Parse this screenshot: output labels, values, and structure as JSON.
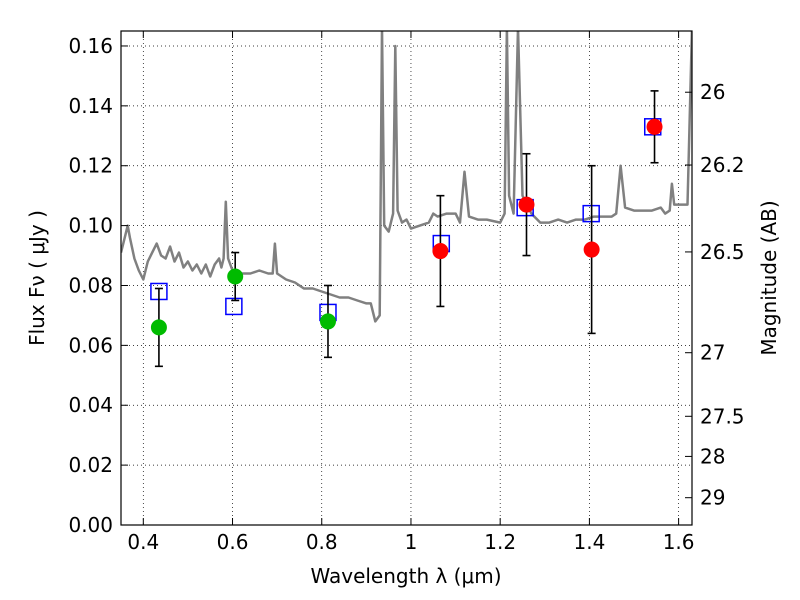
{
  "chart_data": {
    "type": "scatter",
    "xlabel": "Wavelength  λ (μm)",
    "ylabel": "Flux  Fν  ( μJy )",
    "ylabel_right": "Magnitude (AB)",
    "xlim": [
      0.35,
      1.63
    ],
    "ylim": [
      0.0,
      0.165
    ],
    "grid": true,
    "x_ticks": [
      {
        "value": 0.4,
        "label": "0.4"
      },
      {
        "value": 0.6,
        "label": "0.6"
      },
      {
        "value": 0.8,
        "label": "0.8"
      },
      {
        "value": 1.0,
        "label": "1"
      },
      {
        "value": 1.2,
        "label": "1.2"
      },
      {
        "value": 1.4,
        "label": "1.4"
      },
      {
        "value": 1.6,
        "label": "1.6"
      }
    ],
    "y_ticks": [
      {
        "value": 0.0,
        "label": "0.00"
      },
      {
        "value": 0.02,
        "label": "0.02"
      },
      {
        "value": 0.04,
        "label": "0.04"
      },
      {
        "value": 0.06,
        "label": "0.06"
      },
      {
        "value": 0.08,
        "label": "0.08"
      },
      {
        "value": 0.1,
        "label": "0.10"
      },
      {
        "value": 0.12,
        "label": "0.12"
      },
      {
        "value": 0.14,
        "label": "0.14"
      },
      {
        "value": 0.16,
        "label": "0.16"
      }
    ],
    "right_ticks": [
      {
        "value": 26.0,
        "label": "26"
      },
      {
        "value": 26.2,
        "label": "26.2"
      },
      {
        "value": 26.5,
        "label": "26.5"
      },
      {
        "value": 27.0,
        "label": "27"
      },
      {
        "value": 27.5,
        "label": "27.5"
      },
      {
        "value": 28.0,
        "label": "28"
      },
      {
        "value": 29.0,
        "label": "29"
      }
    ],
    "series": [
      {
        "style": "line",
        "color": "#808080",
        "points": [
          [
            0.35,
            0.091
          ],
          [
            0.36,
            0.097
          ],
          [
            0.365,
            0.1
          ],
          [
            0.37,
            0.096
          ],
          [
            0.38,
            0.089
          ],
          [
            0.39,
            0.085
          ],
          [
            0.4,
            0.082
          ],
          [
            0.41,
            0.088
          ],
          [
            0.42,
            0.091
          ],
          [
            0.43,
            0.094
          ],
          [
            0.44,
            0.09
          ],
          [
            0.45,
            0.089
          ],
          [
            0.46,
            0.093
          ],
          [
            0.47,
            0.088
          ],
          [
            0.48,
            0.091
          ],
          [
            0.49,
            0.086
          ],
          [
            0.5,
            0.088
          ],
          [
            0.51,
            0.085
          ],
          [
            0.52,
            0.087
          ],
          [
            0.53,
            0.084
          ],
          [
            0.54,
            0.087
          ],
          [
            0.55,
            0.083
          ],
          [
            0.56,
            0.087
          ],
          [
            0.57,
            0.089
          ],
          [
            0.575,
            0.086
          ],
          [
            0.58,
            0.089
          ],
          [
            0.585,
            0.108
          ],
          [
            0.59,
            0.089
          ],
          [
            0.6,
            0.085
          ],
          [
            0.62,
            0.084
          ],
          [
            0.64,
            0.084
          ],
          [
            0.66,
            0.085
          ],
          [
            0.68,
            0.084
          ],
          [
            0.69,
            0.084
          ],
          [
            0.695,
            0.094
          ],
          [
            0.7,
            0.084
          ],
          [
            0.72,
            0.082
          ],
          [
            0.74,
            0.081
          ],
          [
            0.76,
            0.079
          ],
          [
            0.78,
            0.079
          ],
          [
            0.8,
            0.078
          ],
          [
            0.82,
            0.077
          ],
          [
            0.84,
            0.076
          ],
          [
            0.86,
            0.076
          ],
          [
            0.88,
            0.075
          ],
          [
            0.9,
            0.074
          ],
          [
            0.91,
            0.074
          ],
          [
            0.92,
            0.068
          ],
          [
            0.93,
            0.07
          ],
          [
            0.935,
            0.166
          ],
          [
            0.94,
            0.1
          ],
          [
            0.95,
            0.098
          ],
          [
            0.96,
            0.104
          ],
          [
            0.965,
            0.16
          ],
          [
            0.97,
            0.105
          ],
          [
            0.98,
            0.101
          ],
          [
            0.99,
            0.102
          ],
          [
            1.0,
            0.099
          ],
          [
            1.02,
            0.1
          ],
          [
            1.04,
            0.101
          ],
          [
            1.05,
            0.104
          ],
          [
            1.06,
            0.103
          ],
          [
            1.08,
            0.104
          ],
          [
            1.1,
            0.104
          ],
          [
            1.11,
            0.101
          ],
          [
            1.12,
            0.118
          ],
          [
            1.13,
            0.103
          ],
          [
            1.15,
            0.102
          ],
          [
            1.17,
            0.102
          ],
          [
            1.2,
            0.101
          ],
          [
            1.21,
            0.104
          ],
          [
            1.215,
            0.166
          ],
          [
            1.22,
            0.11
          ],
          [
            1.23,
            0.104
          ],
          [
            1.24,
            0.166
          ],
          [
            1.25,
            0.11
          ],
          [
            1.27,
            0.104
          ],
          [
            1.29,
            0.101
          ],
          [
            1.31,
            0.101
          ],
          [
            1.33,
            0.102
          ],
          [
            1.35,
            0.101
          ],
          [
            1.37,
            0.102
          ],
          [
            1.39,
            0.102
          ],
          [
            1.41,
            0.103
          ],
          [
            1.43,
            0.103
          ],
          [
            1.45,
            0.103
          ],
          [
            1.46,
            0.104
          ],
          [
            1.47,
            0.12
          ],
          [
            1.48,
            0.106
          ],
          [
            1.5,
            0.105
          ],
          [
            1.52,
            0.105
          ],
          [
            1.54,
            0.105
          ],
          [
            1.56,
            0.106
          ],
          [
            1.57,
            0.104
          ],
          [
            1.58,
            0.105
          ],
          [
            1.585,
            0.114
          ],
          [
            1.59,
            0.107
          ],
          [
            1.6,
            0.107
          ],
          [
            1.62,
            0.107
          ],
          [
            1.63,
            0.166
          ]
        ]
      },
      {
        "style": "open-square",
        "color": "#0000ff",
        "points": [
          [
            0.435,
            0.078
          ],
          [
            0.603,
            0.073
          ],
          [
            0.814,
            0.071
          ],
          [
            1.068,
            0.094
          ],
          [
            1.256,
            0.106
          ],
          [
            1.404,
            0.104
          ],
          [
            1.542,
            0.133
          ]
        ]
      },
      {
        "style": "filled-circle",
        "color": "#00bb00",
        "points": [
          [
            0.435,
            0.066
          ],
          [
            0.606,
            0.083
          ],
          [
            0.814,
            0.068
          ]
        ]
      },
      {
        "style": "filled-circle",
        "color": "#ff0000",
        "points": [
          [
            1.066,
            0.0915
          ],
          [
            1.259,
            0.107
          ],
          [
            1.405,
            0.092
          ],
          [
            1.546,
            0.133
          ]
        ]
      },
      {
        "style": "errorbar",
        "color": "#000000",
        "bars": [
          {
            "x": 0.435,
            "low": 0.053,
            "high": 0.079
          },
          {
            "x": 0.606,
            "low": 0.075,
            "high": 0.091
          },
          {
            "x": 0.814,
            "low": 0.056,
            "high": 0.08
          },
          {
            "x": 1.066,
            "low": 0.073,
            "high": 0.11
          },
          {
            "x": 1.259,
            "low": 0.09,
            "high": 0.124
          },
          {
            "x": 1.405,
            "low": 0.064,
            "high": 0.12
          },
          {
            "x": 1.546,
            "low": 0.121,
            "high": 0.145
          }
        ]
      }
    ]
  }
}
